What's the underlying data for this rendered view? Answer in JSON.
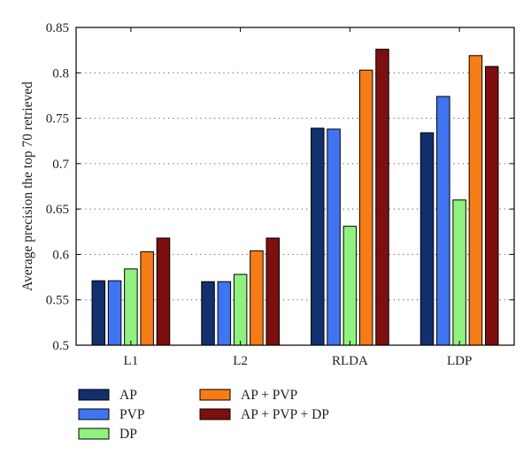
{
  "chart_data": {
    "type": "bar",
    "ylabel": "Average precision the top 70 retrieved",
    "xlabel": "",
    "ylim": [
      0.5,
      0.85
    ],
    "yticks": [
      "0.5",
      "0.55",
      "0.6",
      "0.65",
      "0.7",
      "0.75",
      "0.8",
      "0.85"
    ],
    "grid": "horizontal dotted",
    "legend_position": "bottom",
    "categories": [
      "L1",
      "L2",
      "RLDA",
      "LDP"
    ],
    "series": [
      {
        "name": "AP",
        "color": "#10306e",
        "values": [
          0.571,
          0.57,
          0.739,
          0.734
        ]
      },
      {
        "name": "PVP",
        "color": "#3f74f2",
        "values": [
          0.571,
          0.57,
          0.738,
          0.774
        ]
      },
      {
        "name": "DP",
        "color": "#8ef27c",
        "values": [
          0.584,
          0.578,
          0.631,
          0.66
        ]
      },
      {
        "name": "AP + PVP",
        "color": "#f77c14",
        "values": [
          0.603,
          0.604,
          0.803,
          0.819
        ]
      },
      {
        "name": "AP + PVP + DP",
        "color": "#7d0f0f",
        "values": [
          0.618,
          0.618,
          0.826,
          0.807
        ]
      }
    ]
  }
}
